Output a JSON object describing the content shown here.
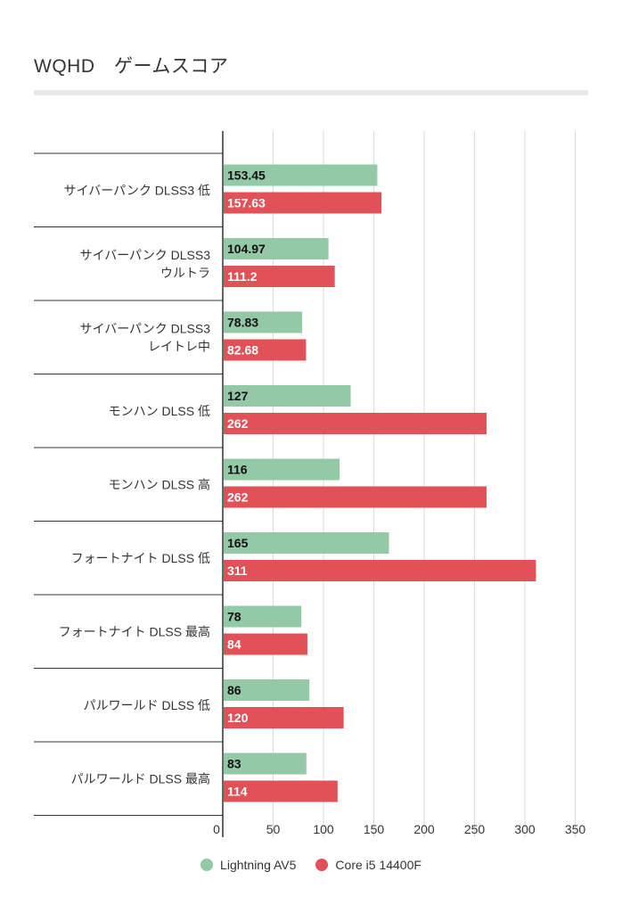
{
  "chart_data": {
    "type": "bar",
    "orientation": "horizontal",
    "title": "WQHD　ゲームスコア",
    "categories": [
      "サイバーパンク DLSS3 低",
      "サイバーパンク DLSS3\nウルトラ",
      "サイバーパンク DLSS3\nレイトレ中",
      "モンハン DLSS 低",
      "モンハン DLSS 高",
      "フォートナイト DLSS 低",
      "フォートナイト DLSS 最高",
      "パルワールド DLSS 低",
      "パルワールド DLSS 最高"
    ],
    "series": [
      {
        "name": "Lightning AV5",
        "color": "#93c9a7",
        "label_color": "#111111",
        "values": [
          153.45,
          104.97,
          78.83,
          127,
          116,
          165,
          78,
          86,
          83
        ],
        "value_labels": [
          "153.45",
          "104.97",
          "78.83",
          "127",
          "116",
          "165",
          "78",
          "86",
          "83"
        ]
      },
      {
        "name": "Core i5 14400F",
        "color": "#e05257",
        "label_color": "#ffffff",
        "values": [
          157.63,
          111.2,
          82.68,
          262,
          262,
          311,
          84,
          120,
          114
        ],
        "value_labels": [
          "157.63",
          "111.2",
          "82.68",
          "262",
          "262",
          "311",
          "84",
          "120",
          "114"
        ]
      }
    ],
    "x_ticks": [
      0,
      50,
      100,
      150,
      200,
      250,
      300,
      350
    ],
    "xlim": [
      0,
      350
    ],
    "grid": true,
    "legend_position": "bottom"
  }
}
